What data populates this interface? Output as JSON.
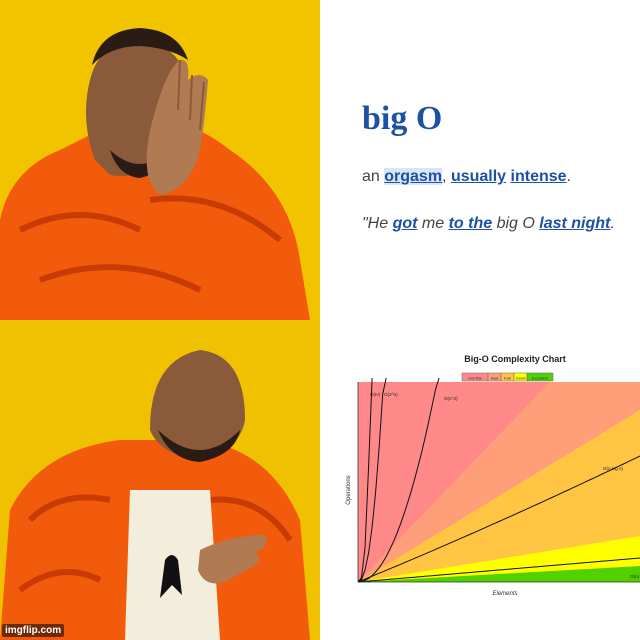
{
  "watermark": "imgflip.com",
  "definition": {
    "word": "big O",
    "meaning": {
      "prefix": "an ",
      "word1": "orgasm",
      "sep1": ", ",
      "word2": "usually",
      "sep2": " ",
      "word3": "intense",
      "suffix": "."
    },
    "example": {
      "p1": "\"He ",
      "w1": "got",
      "p2": " me ",
      "w2": "to the",
      "p3": " big O ",
      "w3": "last night",
      "p4": "."
    },
    "link_color": "#1d51a3"
  },
  "chart_data": {
    "type": "area",
    "title": "Big-O Complexity Chart",
    "xlabel": "Elements",
    "ylabel": "Operations",
    "grid": false,
    "legend_position": "top-center",
    "legend": [
      {
        "label": "Horrible",
        "color": "#ff8989"
      },
      {
        "label": "Bad",
        "color": "#ff9f79"
      },
      {
        "label": "Fair",
        "color": "#ffc543"
      },
      {
        "label": "Good",
        "color": "#ffff00"
      },
      {
        "label": "Excellent",
        "color": "#53d000"
      }
    ],
    "regions": [
      {
        "label": "Horrible",
        "color": "#ff8989"
      },
      {
        "label": "Bad",
        "color": "#ff9f79"
      },
      {
        "label": "Fair",
        "color": "#ffc543"
      },
      {
        "label": "Good",
        "color": "#ffff00"
      },
      {
        "label": "Excellent",
        "color": "#53d000"
      }
    ],
    "curve_labels": [
      "O(n!)",
      "O(2^n)",
      "O(n^2)",
      "O(n log n)",
      "O(n)"
    ]
  }
}
